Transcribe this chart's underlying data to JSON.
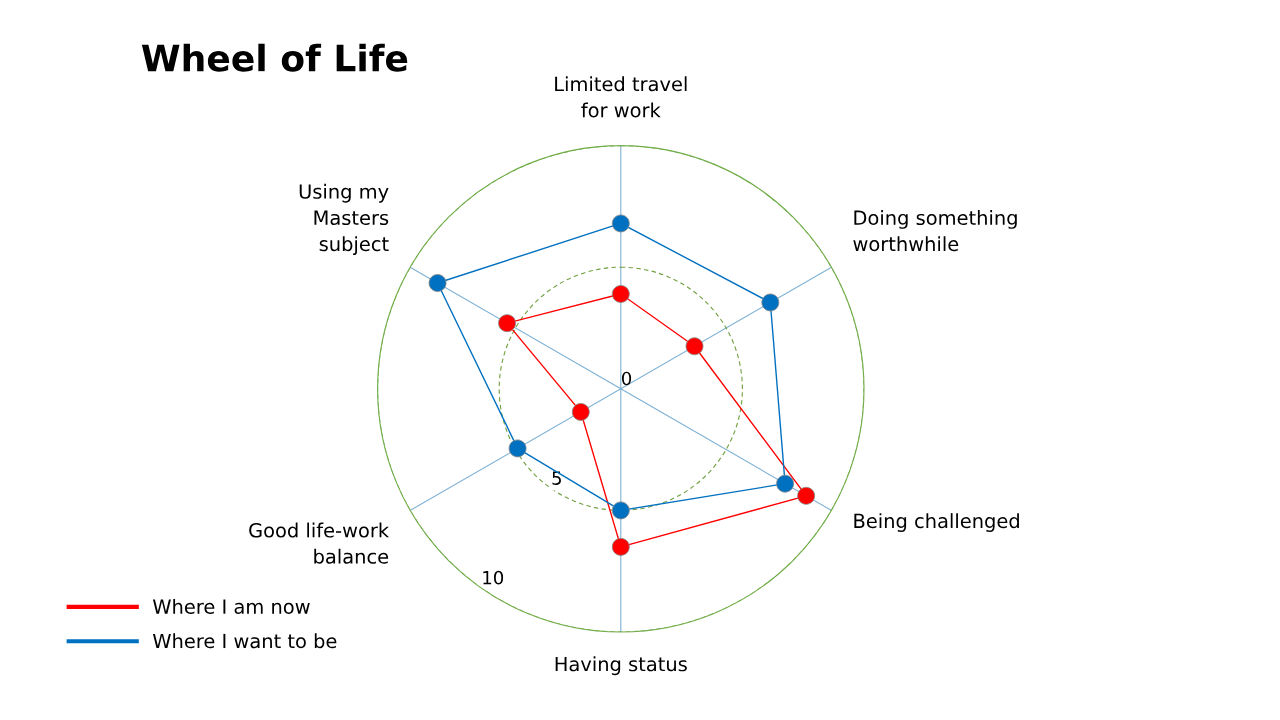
{
  "chart_data": {
    "type": "radar",
    "title": "Wheel of Life",
    "categories": [
      "Limited travel\nfor work",
      "Doing something\nworthwhile",
      "Being challenged",
      "Having status",
      "Good life-work\nbalance",
      "Using my\nMasters\nsubject"
    ],
    "series": [
      {
        "name": "Where I am now",
        "color": "#ff0000",
        "values": [
          3.9,
          3.5,
          8.8,
          6.5,
          1.9,
          5.4
        ]
      },
      {
        "name": "Where I want to be",
        "color": "#0070c0",
        "values": [
          6.8,
          7.1,
          7.8,
          5.0,
          4.9,
          8.7
        ]
      }
    ],
    "ylim": [
      0,
      10
    ],
    "yticks": [
      0,
      5,
      10
    ],
    "grid": true,
    "legend": "bottom left",
    "marker": "circle",
    "line_style": "solid"
  }
}
